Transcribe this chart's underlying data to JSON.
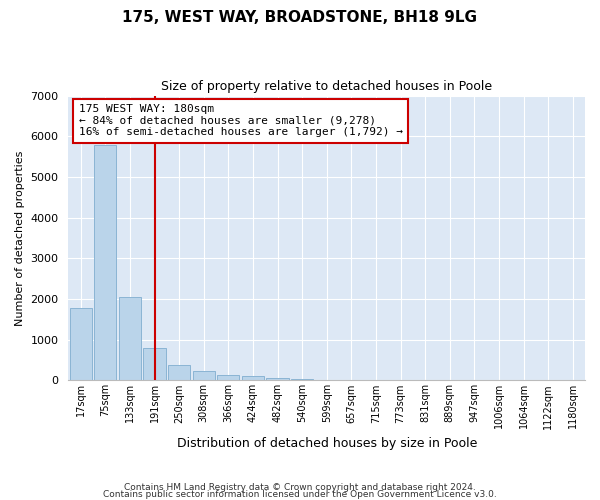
{
  "title1": "175, WEST WAY, BROADSTONE, BH18 9LG",
  "title2": "Size of property relative to detached houses in Poole",
  "xlabel": "Distribution of detached houses by size in Poole",
  "ylabel": "Number of detached properties",
  "categories": [
    "17sqm",
    "75sqm",
    "133sqm",
    "191sqm",
    "250sqm",
    "308sqm",
    "366sqm",
    "424sqm",
    "482sqm",
    "540sqm",
    "599sqm",
    "657sqm",
    "715sqm",
    "773sqm",
    "831sqm",
    "889sqm",
    "947sqm",
    "1006sqm",
    "1064sqm",
    "1122sqm",
    "1180sqm"
  ],
  "values": [
    1780,
    5780,
    2060,
    800,
    390,
    240,
    130,
    100,
    70,
    30,
    10,
    5,
    3,
    2,
    1,
    0,
    0,
    0,
    0,
    0,
    0
  ],
  "bar_color": "#bad4ea",
  "bar_edge_color": "#8ab4d4",
  "red_line_x": 3.0,
  "annotation_text": "175 WEST WAY: 180sqm\n← 84% of detached houses are smaller (9,278)\n16% of semi-detached houses are larger (1,792) →",
  "annotation_box_color": "#ffffff",
  "annotation_border_color": "#cc0000",
  "ylim": [
    0,
    7000
  ],
  "yticks": [
    0,
    1000,
    2000,
    3000,
    4000,
    5000,
    6000,
    7000
  ],
  "footer1": "Contains HM Land Registry data © Crown copyright and database right 2024.",
  "footer2": "Contains public sector information licensed under the Open Government Licence v3.0.",
  "bg_color": "#ffffff",
  "plot_bg_color": "#dde8f5"
}
